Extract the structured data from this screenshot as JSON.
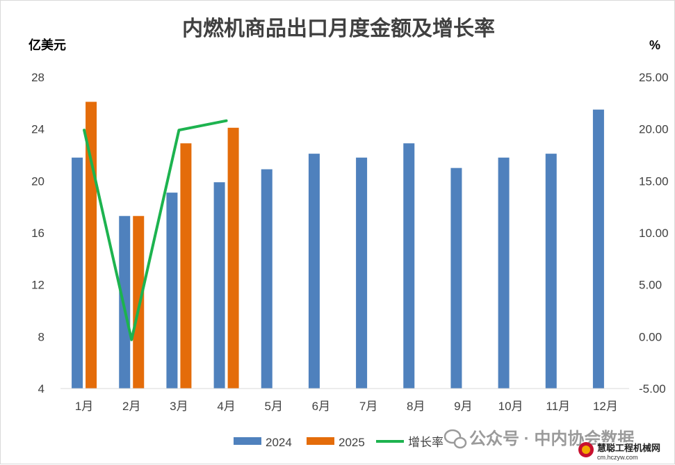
{
  "chart_data": {
    "type": "bar",
    "title": "内燃机商品出口月度金额及增长率",
    "ylabel_left": "亿美元",
    "ylabel_right": "%",
    "categories": [
      "1月",
      "2月",
      "3月",
      "4月",
      "5月",
      "6月",
      "7月",
      "8月",
      "9月",
      "10月",
      "11月",
      "12月"
    ],
    "y_left": {
      "min": 4,
      "max": 28,
      "ticks": [
        4,
        8,
        12,
        16,
        20,
        24,
        28
      ]
    },
    "y_right": {
      "min": -5,
      "max": 25,
      "ticks": [
        "-5.00",
        "0.00",
        "5.00",
        "10.00",
        "15.00",
        "20.00",
        "25.00"
      ]
    },
    "series": [
      {
        "name": "2024",
        "kind": "bar",
        "axis": "left",
        "color": "#4f81bd",
        "values": [
          21.8,
          17.3,
          19.1,
          19.9,
          20.9,
          22.1,
          21.8,
          22.9,
          21.0,
          21.8,
          22.1,
          25.5
        ]
      },
      {
        "name": "2025",
        "kind": "bar",
        "axis": "left",
        "color": "#e46c0a",
        "values": [
          26.1,
          17.3,
          22.9,
          24.1,
          null,
          null,
          null,
          null,
          null,
          null,
          null,
          null
        ]
      },
      {
        "name": "增长率",
        "kind": "line",
        "axis": "right",
        "color": "#1db34f",
        "values": [
          19.9,
          -0.3,
          19.9,
          20.8,
          null,
          null,
          null,
          null,
          null,
          null,
          null,
          null
        ]
      }
    ],
    "grid": false,
    "legend_position": "bottom"
  },
  "watermark": {
    "text": "公众号 · 中内协会数据",
    "logo_text": "慧聪工程机械网",
    "logo_url": "cm.hczyw.com"
  }
}
